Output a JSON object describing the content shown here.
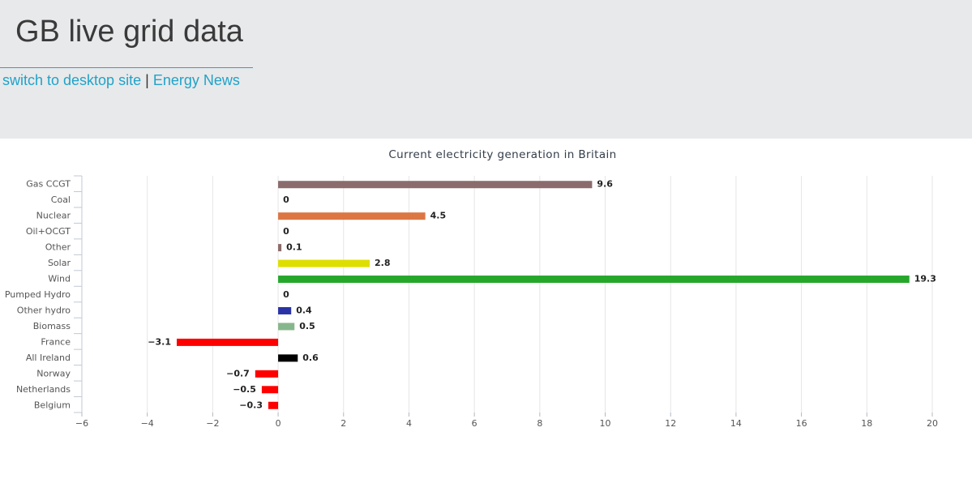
{
  "header": {
    "title": "GB live grid data",
    "links": {
      "desktop": "switch to desktop site",
      "separator": "|",
      "news": "Energy News"
    }
  },
  "colors": {
    "link": "#20a3c8",
    "header_bg": "#e8e9eb",
    "grid": "#e6e6e6"
  },
  "chart_data": {
    "type": "bar",
    "orientation": "horizontal",
    "title": "Current electricity generation in Britain",
    "xlabel": "",
    "ylabel": "",
    "xlim": [
      -6,
      20
    ],
    "xticks": [
      -6,
      -4,
      -2,
      0,
      2,
      4,
      6,
      8,
      10,
      12,
      14,
      16,
      18,
      20
    ],
    "grid": true,
    "legend": "none",
    "data_labels": true,
    "categories": [
      "Gas CCGT",
      "Coal",
      "Nuclear",
      "Oil+OCGT",
      "Other",
      "Solar",
      "Wind",
      "Pumped Hydro",
      "Other hydro",
      "Biomass",
      "France",
      "All Ireland",
      "Norway",
      "Netherlands",
      "Belgium"
    ],
    "values": [
      9.6,
      0,
      4.5,
      0,
      0.1,
      2.8,
      19.3,
      0,
      0.4,
      0.5,
      -3.1,
      0.6,
      -0.7,
      -0.5,
      -0.3
    ],
    "value_labels": [
      "9.6",
      "0",
      "4.5",
      "0",
      "0.1",
      "2.8",
      "19.3",
      "0",
      "0.4",
      "0.5",
      "−3.1",
      "0.6",
      "−0.7",
      "−0.5",
      "−0.3"
    ],
    "colors": [
      "#8b6b6b",
      "#333333",
      "#dc7743",
      "#8b8b8b",
      "#8b6b6b",
      "#dede00",
      "#26a72c",
      "#3544a0",
      "#2a33a6",
      "#86b78c",
      "#ff0000",
      "#000000",
      "#ff0000",
      "#ff0000",
      "#ff0000"
    ]
  }
}
